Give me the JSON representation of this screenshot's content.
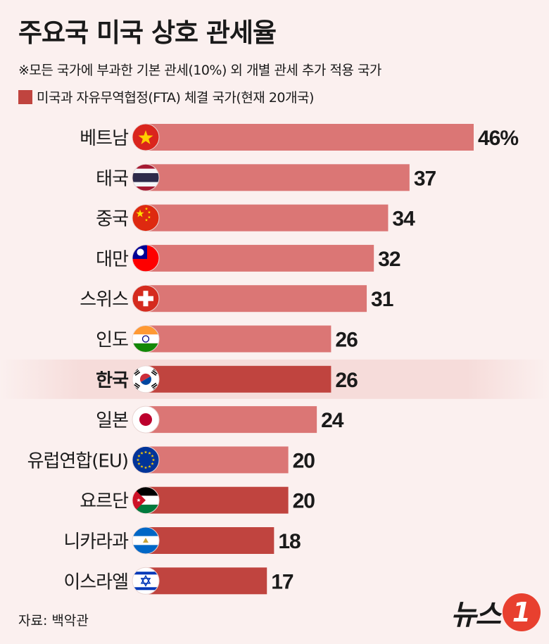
{
  "title": "주요국 미국 상호 관세율",
  "note": "※모든 국가에 부과한 기본 관세(10%) 외 개별 관세 추가 적용 국가",
  "legend": {
    "label": "미국과 자유무역협정(FTA) 체결 국가(현재 20개국)",
    "color": "#c0443f"
  },
  "source": "자료: 백악관",
  "logo": {
    "text": "뉴스",
    "badge": "1",
    "badge_color": "#e8402f"
  },
  "colors": {
    "bar_default": "#db7675",
    "bar_fta": "#c0443f",
    "background": "#fbf0ef",
    "highlight_band": "#f6dcda"
  },
  "chart_data": {
    "type": "bar",
    "orientation": "horizontal",
    "unit_label": "%",
    "categories": [
      "베트남",
      "태국",
      "중국",
      "대만",
      "스위스",
      "인도",
      "한국",
      "일본",
      "유럽연합(EU)",
      "요르단",
      "니카라과",
      "이스라엘"
    ],
    "values": [
      46,
      37,
      34,
      32,
      31,
      26,
      26,
      24,
      20,
      20,
      18,
      17
    ],
    "value_labels": [
      "46%",
      "37",
      "34",
      "32",
      "31",
      "26",
      "26",
      "24",
      "20",
      "20",
      "18",
      "17"
    ],
    "fta": [
      false,
      false,
      false,
      false,
      false,
      false,
      true,
      false,
      false,
      true,
      true,
      true
    ],
    "highlight": [
      "한국"
    ],
    "flag_icons": [
      "vietnam-flag-icon",
      "thailand-flag-icon",
      "china-flag-icon",
      "taiwan-flag-icon",
      "switzerland-flag-icon",
      "india-flag-icon",
      "korea-flag-icon",
      "japan-flag-icon",
      "eu-flag-icon",
      "jordan-flag-icon",
      "nicaragua-flag-icon",
      "israel-flag-icon"
    ],
    "xlim": [
      0,
      46
    ],
    "grid": false,
    "legend_position": "top-left"
  }
}
